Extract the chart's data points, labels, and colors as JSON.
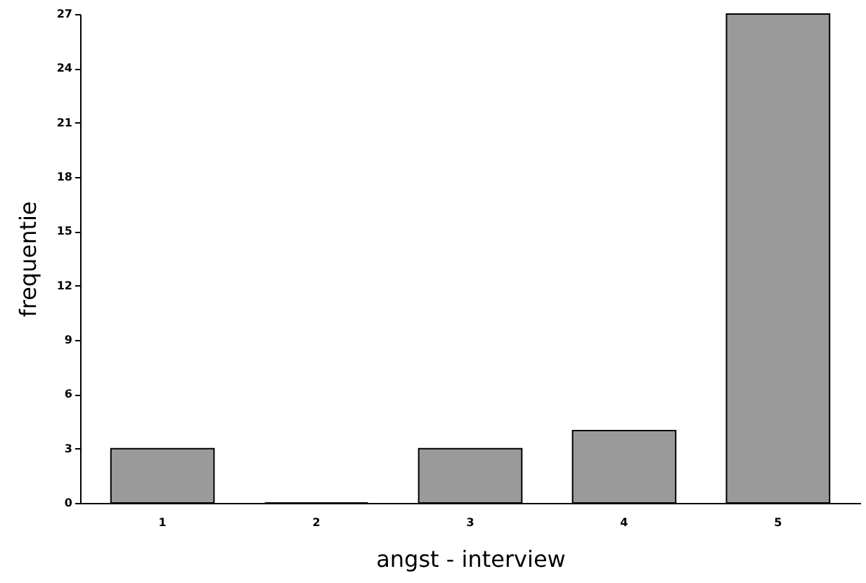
{
  "chart_data": {
    "type": "bar",
    "xlabel": "angst - interview",
    "ylabel": "frequentie",
    "categories": [
      "1",
      "2",
      "3",
      "4",
      "5"
    ],
    "values": [
      3,
      0,
      3,
      4,
      27
    ],
    "color": "#9a9a9a",
    "ylim": [
      0,
      27
    ],
    "yticks": [
      0,
      3,
      6,
      9,
      12,
      15,
      18,
      21,
      24,
      27
    ],
    "grid": false
  }
}
